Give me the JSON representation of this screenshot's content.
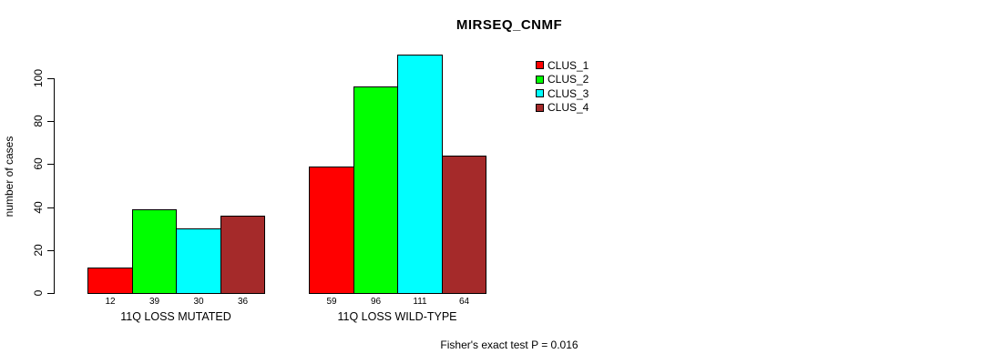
{
  "chart_data": {
    "type": "bar",
    "title": "MIRSEQ_CNMF",
    "ylabel": "number of cases",
    "xlabel": "",
    "categories": [
      "11Q LOSS MUTATED",
      "11Q LOSS WILD-TYPE"
    ],
    "series": [
      {
        "name": "CLUS_1",
        "color": "#ff0000",
        "values": [
          12,
          59
        ]
      },
      {
        "name": "CLUS_2",
        "color": "#00ff00",
        "values": [
          39,
          96
        ]
      },
      {
        "name": "CLUS_3",
        "color": "#00ffff",
        "values": [
          30,
          111
        ]
      },
      {
        "name": "CLUS_4",
        "color": "#a52a2a",
        "values": [
          36,
          64
        ]
      }
    ],
    "yticks": [
      0,
      20,
      40,
      60,
      80,
      100
    ],
    "ylim": [
      0,
      111
    ],
    "bar_value_labels": true,
    "grid": false,
    "legend_position": "top-right",
    "annotation": "Fisher's exact test P = 0.016",
    "text_color": "#000000",
    "background_color": "#ffffff"
  }
}
